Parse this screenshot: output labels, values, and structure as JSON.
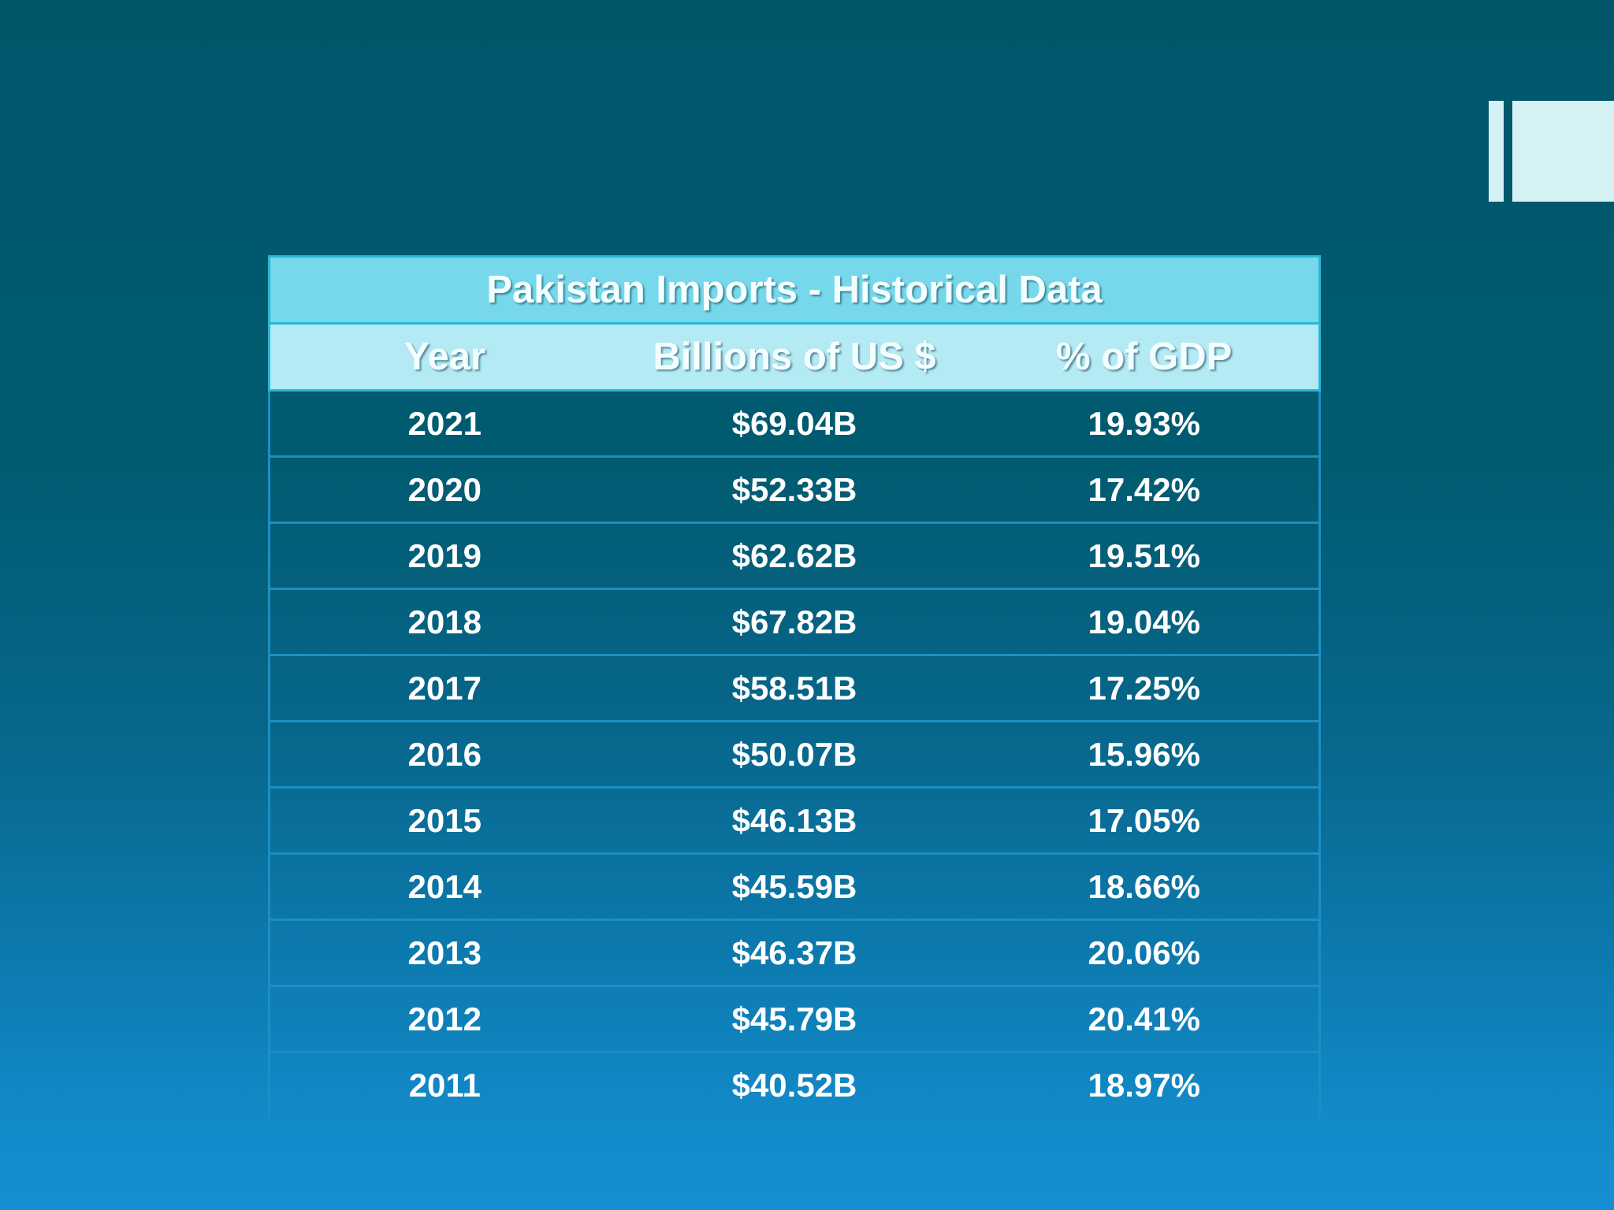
{
  "table": {
    "title": "Pakistan Imports - Historical Data",
    "headers": [
      "Year",
      "Billions of US $",
      "% of GDP"
    ],
    "rows": [
      [
        "2021",
        "$69.04B",
        "19.93%"
      ],
      [
        "2020",
        "$52.33B",
        "17.42%"
      ],
      [
        "2019",
        "$62.62B",
        "19.51%"
      ],
      [
        "2018",
        "$67.82B",
        "19.04%"
      ],
      [
        "2017",
        "$58.51B",
        "17.25%"
      ],
      [
        "2016",
        "$50.07B",
        "15.96%"
      ],
      [
        "2015",
        "$46.13B",
        "17.05%"
      ],
      [
        "2014",
        "$45.59B",
        "18.66%"
      ],
      [
        "2013",
        "$46.37B",
        "20.06%"
      ],
      [
        "2012",
        "$45.79B",
        "20.41%"
      ],
      [
        "2011",
        "$40.52B",
        "18.97%"
      ]
    ]
  },
  "colors": {
    "background_top": "#01566a",
    "background_bottom": "#168fd2",
    "title_band": "#76d8ea",
    "header_band": "#b4eaf4",
    "accent": "#d4f2f4"
  }
}
